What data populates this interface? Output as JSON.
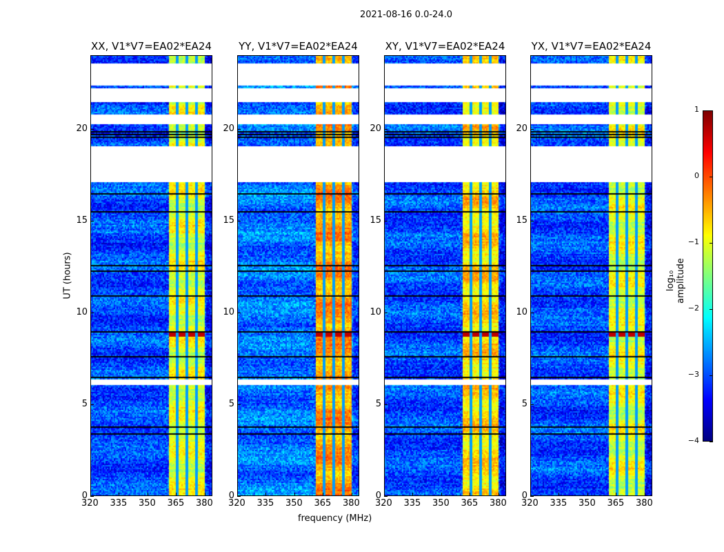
{
  "suptitle": "2021-08-16 0.0-24.0",
  "chart_data": {
    "type": "heatmap",
    "xlabel": "frequency (MHz)",
    "ylabel": "UT (hours)",
    "xlim": [
      320,
      384
    ],
    "ylim": [
      0,
      24
    ],
    "xticks": [
      "320",
      "335",
      "350",
      "365",
      "380"
    ],
    "xtick_values": [
      320,
      335,
      350,
      365,
      380
    ],
    "yticks": [
      "0",
      "5",
      "10",
      "15",
      "20"
    ],
    "ytick_values": [
      0,
      5,
      10,
      15,
      20
    ],
    "panels": [
      {
        "title": "XX, V1*V7=EA02*EA24",
        "band_level": -1.0,
        "bg_level": -3.0
      },
      {
        "title": "YY, V1*V7=EA02*EA24",
        "band_level": -0.4,
        "bg_level": -2.8
      },
      {
        "title": "XY, V1*V7=EA02*EA24",
        "band_level": -0.7,
        "bg_level": -3.0
      },
      {
        "title": "YX, V1*V7=EA02*EA24",
        "band_level": -1.0,
        "bg_level": -3.0
      }
    ],
    "bright_band_mhz": [
      360.5,
      379.6
    ],
    "band_dividers_mhz": [
      365.1,
      370.2,
      375.3
    ],
    "masked_hours": [
      [
        22.36,
        23.6
      ],
      [
        21.5,
        22.2
      ],
      [
        20.3,
        20.8
      ],
      [
        17.1,
        19.1
      ],
      [
        6.1,
        6.4
      ]
    ],
    "dark_rows_hours": [
      19.55,
      19.7,
      19.85,
      16.5,
      15.5,
      12.6,
      12.3,
      10.9,
      8.95,
      7.6,
      6.5,
      3.8,
      3.4
    ],
    "rfi_peak_hours": [
      8.7,
      9.0
    ],
    "colorbar": {
      "label": "log₁₀ amplitude",
      "range": [
        -4,
        1
      ],
      "ticks": [
        "1",
        "0",
        "−1",
        "−2",
        "−3",
        "−4"
      ],
      "tick_values": [
        1,
        0,
        -1,
        -2,
        -3,
        -4
      ],
      "colormap": "jet"
    }
  }
}
